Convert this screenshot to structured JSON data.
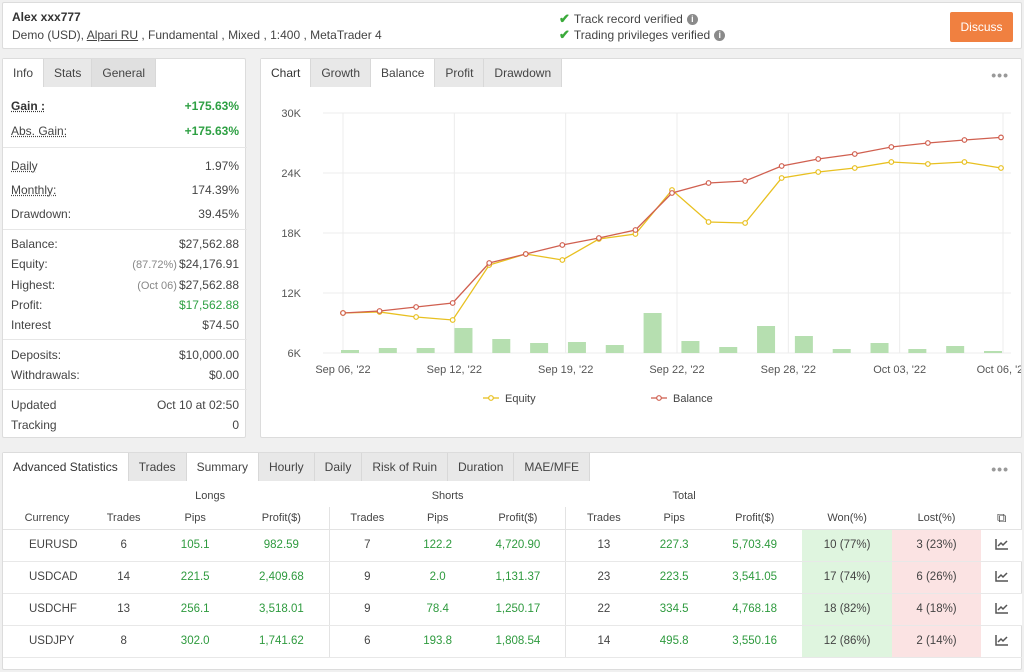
{
  "header": {
    "account_name": "Alex xxx777",
    "info_prefix": "Demo (USD), ",
    "broker": "Alpari RU",
    "info_suffix": " , Fundamental , Mixed , 1:400 , MetaTrader 4",
    "verif1": "Track record verified",
    "verif2": "Trading privileges verified",
    "discuss_label": "Discuss"
  },
  "stats_tabs": [
    "Info",
    "Stats",
    "General"
  ],
  "stats": {
    "gain": {
      "label": "Gain :",
      "value": "+175.63%"
    },
    "abs_gain": {
      "label": "Abs. Gain:",
      "value": "+175.63%"
    },
    "daily": {
      "label": "Daily",
      "value": "1.97%"
    },
    "monthly": {
      "label": "Monthly:",
      "value": "174.39%"
    },
    "drawdown": {
      "label": "Drawdown:",
      "value": "39.45%"
    },
    "balance": {
      "label": "Balance:",
      "value": "$27,562.88"
    },
    "equity": {
      "label": "Equity:",
      "pre": "(87.72%)",
      "value": "$24,176.91"
    },
    "highest": {
      "label": "Highest:",
      "pre": "(Oct 06)",
      "value": "$27,562.88"
    },
    "profit": {
      "label": "Profit:",
      "value": "$17,562.88"
    },
    "interest": {
      "label": "Interest",
      "value": "$74.50"
    },
    "deposits": {
      "label": "Deposits:",
      "value": "$10,000.00"
    },
    "withdrawals": {
      "label": "Withdrawals:",
      "value": "$0.00"
    },
    "updated": {
      "label": "Updated",
      "value": "Oct 10 at 02:50"
    },
    "tracking": {
      "label": "Tracking",
      "value": "0"
    }
  },
  "chart_tabs": {
    "title": "Chart",
    "items": [
      "Growth",
      "Balance",
      "Profit",
      "Drawdown"
    ],
    "active": "Balance"
  },
  "chart_data": {
    "type": "line",
    "x_tick_labels": [
      "Sep 06, '22",
      "Sep 12, '22",
      "Sep 19, '22",
      "Sep 22, '22",
      "Sep 28, '22",
      "Oct 03, '22",
      "Oct 06, '22"
    ],
    "y_tick_labels": [
      "6K",
      "12K",
      "18K",
      "24K",
      "30K"
    ],
    "ylim": [
      6000,
      30000
    ],
    "grid": true,
    "legend_position": "bottom",
    "series": [
      {
        "name": "Equity",
        "color": "#e8c020",
        "values": [
          10000,
          10100,
          9600,
          9300,
          14800,
          15900,
          15300,
          17400,
          17900,
          22300,
          19100,
          19000,
          23500,
          24100,
          24500,
          25100,
          24900,
          25100,
          24500
        ]
      },
      {
        "name": "Balance",
        "color": "#d06050",
        "values": [
          10000,
          10200,
          10600,
          11000,
          15000,
          15900,
          16800,
          17500,
          18300,
          22000,
          23000,
          23200,
          24700,
          25400,
          25900,
          26600,
          27000,
          27300,
          27560
        ]
      }
    ],
    "bars": {
      "color": "#b6dfb0",
      "values": [
        300,
        500,
        500,
        2500,
        1400,
        1000,
        1100,
        800,
        4000,
        1200,
        600,
        2700,
        1700,
        400,
        1000,
        400,
        700,
        200
      ]
    }
  },
  "adv": {
    "title": "Advanced Statistics",
    "tabs": [
      "Trades",
      "Summary",
      "Hourly",
      "Daily",
      "Risk of Ruin",
      "Duration",
      "MAE/MFE"
    ],
    "active": "Summary",
    "groups": {
      "longs": "Longs",
      "shorts": "Shorts",
      "total": "Total"
    },
    "columns": [
      "Currency",
      "Trades",
      "Pips",
      "Profit($)",
      "Trades",
      "Pips",
      "Profit($)",
      "Trades",
      "Pips",
      "Profit($)",
      "Won(%)",
      "Lost(%)"
    ],
    "rows": [
      [
        "EURUSD",
        "6",
        "105.1",
        "982.59",
        "7",
        "122.2",
        "4,720.90",
        "13",
        "227.3",
        "5,703.49",
        "10 (77%)",
        "3 (23%)"
      ],
      [
        "USDCAD",
        "14",
        "221.5",
        "2,409.68",
        "9",
        "2.0",
        "1,131.37",
        "23",
        "223.5",
        "3,541.05",
        "17 (74%)",
        "6 (26%)"
      ],
      [
        "USDCHF",
        "13",
        "256.1",
        "3,518.01",
        "9",
        "78.4",
        "1,250.17",
        "22",
        "334.5",
        "4,768.18",
        "18 (82%)",
        "4 (18%)"
      ],
      [
        "USDJPY",
        "8",
        "302.0",
        "1,741.62",
        "6",
        "193.8",
        "1,808.54",
        "14",
        "495.8",
        "3,550.16",
        "12 (86%)",
        "2 (14%)"
      ]
    ]
  }
}
